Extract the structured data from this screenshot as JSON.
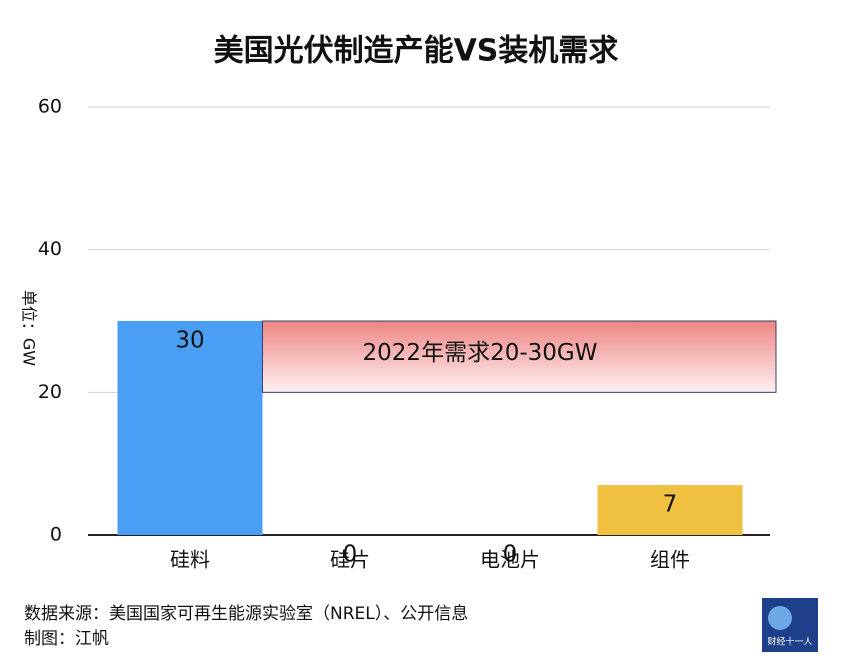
{
  "chart_data": {
    "type": "bar",
    "title": "美国光伏制造产能VS装机需求",
    "y_label": "单位：GW",
    "categories": [
      "硅料",
      "硅片",
      "电池片",
      "组件"
    ],
    "values": [
      30,
      0,
      0,
      7
    ],
    "colors": [
      "#4a9ff5",
      "#4a9ff5",
      "#4a9ff5",
      "#f0c040"
    ],
    "ylim": [
      0,
      60
    ],
    "yticks": [
      0,
      20,
      40,
      60
    ],
    "grid": true,
    "annotation": {
      "text": "2022年需求20-30GW",
      "range": [
        20,
        30
      ]
    }
  },
  "footer": {
    "source": "数据来源：美国国家可再生能源实验室（NREL）、公开信息",
    "author": "制图：江帆",
    "logo": "财经十一人"
  }
}
